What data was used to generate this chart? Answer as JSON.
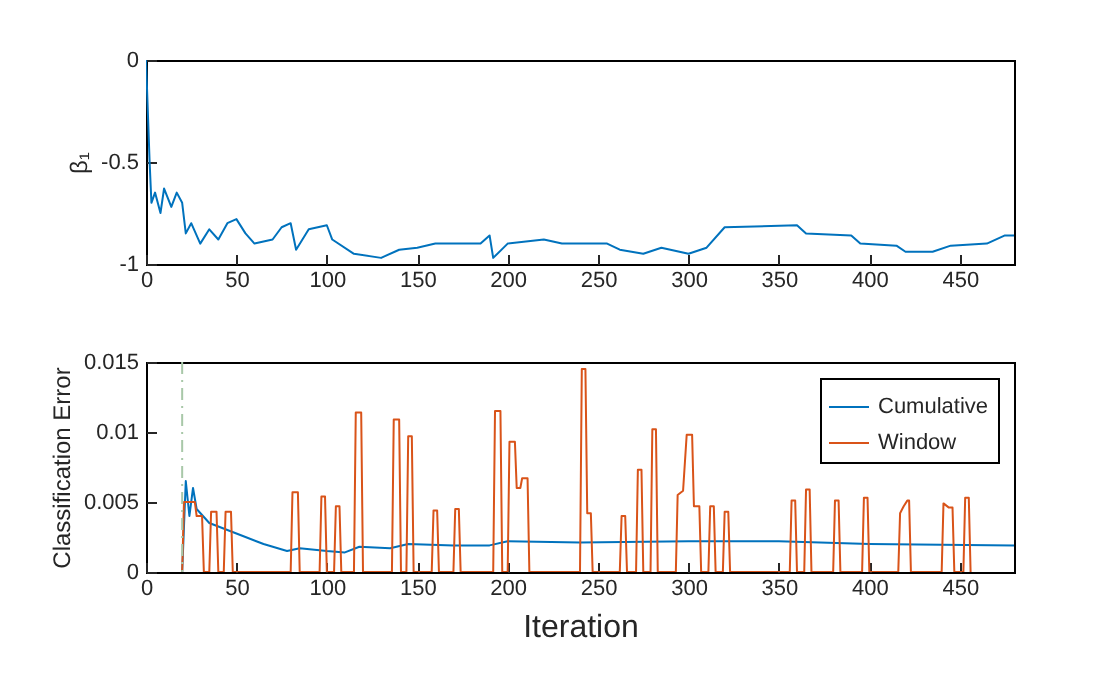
{
  "chart_data": [
    {
      "type": "line",
      "ylabel": "β₁",
      "xlim": [
        0,
        480
      ],
      "xticks": [
        0,
        50,
        100,
        150,
        200,
        250,
        300,
        350,
        400,
        450
      ],
      "ylim": [
        -1,
        0
      ],
      "yticks": [
        -1,
        -0.5,
        0
      ],
      "grid": false,
      "legend": false,
      "series": [
        {
          "color": "#0072bd",
          "x": [
            0,
            2,
            3,
            5,
            8,
            10,
            14,
            17,
            20,
            22,
            25,
            30,
            35,
            40,
            45,
            50,
            55,
            60,
            70,
            75,
            80,
            83,
            90,
            100,
            103,
            115,
            130,
            140,
            150,
            160,
            185,
            190,
            192,
            200,
            220,
            230,
            255,
            262,
            275,
            285,
            300,
            310,
            320,
            360,
            365,
            390,
            395,
            415,
            420,
            435,
            445,
            465,
            475,
            480
          ],
          "values": [
            0,
            -0.5,
            -0.7,
            -0.65,
            -0.75,
            -0.63,
            -0.72,
            -0.65,
            -0.7,
            -0.85,
            -0.8,
            -0.9,
            -0.83,
            -0.88,
            -0.8,
            -0.78,
            -0.85,
            -0.9,
            -0.88,
            -0.82,
            -0.8,
            -0.93,
            -0.83,
            -0.81,
            -0.88,
            -0.95,
            -0.97,
            -0.93,
            -0.92,
            -0.9,
            -0.9,
            -0.86,
            -0.97,
            -0.9,
            -0.88,
            -0.9,
            -0.9,
            -0.93,
            -0.95,
            -0.92,
            -0.95,
            -0.92,
            -0.82,
            -0.81,
            -0.85,
            -0.86,
            -0.9,
            -0.91,
            -0.94,
            -0.94,
            -0.91,
            -0.9,
            -0.86,
            -0.86
          ]
        }
      ]
    },
    {
      "type": "line",
      "xlabel": "Iteration",
      "ylabel": "Classification Error",
      "xlim": [
        0,
        480
      ],
      "xticks": [
        0,
        50,
        100,
        150,
        200,
        250,
        300,
        350,
        400,
        450
      ],
      "ylim": [
        0,
        0.015
      ],
      "yticks": [
        0,
        0.005,
        0.01,
        0.015
      ],
      "grid": false,
      "legend": "top right",
      "ref_lines": [
        {
          "axis": "x",
          "value": 20,
          "color": "#a8c8a8",
          "line_style": "dashdot"
        }
      ],
      "series": [
        {
          "name": "Cumulative",
          "color": "#0072bd",
          "x": [
            20,
            22,
            24,
            26,
            28,
            35,
            45,
            55,
            65,
            78,
            85,
            100,
            110,
            118,
            135,
            145,
            170,
            190,
            200,
            240,
            300,
            350,
            400,
            480
          ],
          "values": [
            0,
            0.0065,
            0.004,
            0.006,
            0.0045,
            0.0035,
            0.003,
            0.0025,
            0.002,
            0.0015,
            0.0017,
            0.0015,
            0.0014,
            0.0018,
            0.0017,
            0.002,
            0.0019,
            0.0019,
            0.0022,
            0.0021,
            0.0022,
            0.0022,
            0.002,
            0.0019
          ]
        },
        {
          "name": "Window",
          "color": "#d95319",
          "x": [
            20,
            21,
            27,
            28,
            31,
            32,
            35,
            36,
            39,
            40,
            43,
            44,
            47,
            48,
            80,
            81,
            84,
            85,
            96,
            97,
            99,
            100,
            104,
            105,
            107,
            108,
            115,
            116,
            119,
            120,
            136,
            137,
            140,
            141,
            144,
            145,
            147,
            148,
            158,
            159,
            161,
            162,
            170,
            171,
            173,
            174,
            192,
            193,
            196,
            197,
            200,
            201,
            204,
            205,
            207,
            208,
            211,
            212,
            240,
            241,
            243,
            244,
            246,
            247,
            262,
            263,
            265,
            266,
            271,
            272,
            274,
            275,
            279,
            280,
            282,
            283,
            293,
            294,
            297,
            299,
            302,
            303,
            306,
            307,
            311,
            312,
            314,
            315,
            319,
            320,
            322,
            323,
            356,
            357,
            359,
            360,
            364,
            365,
            367,
            368,
            380,
            381,
            383,
            384,
            396,
            397,
            399,
            400,
            416,
            417,
            419,
            421,
            422,
            423,
            440,
            441,
            444,
            446,
            447,
            452,
            453,
            455,
            456
          ],
          "values": [
            0,
            0.005,
            0.005,
            0.004,
            0.004,
            0,
            0,
            0.0043,
            0.0043,
            0,
            0,
            0.0043,
            0.0043,
            0,
            0,
            0.0057,
            0.0057,
            0,
            0,
            0.0054,
            0.0054,
            0,
            0,
            0.0047,
            0.0047,
            0,
            0,
            0.0114,
            0.0114,
            0,
            0,
            0.0109,
            0.0109,
            0,
            0,
            0.0097,
            0.0097,
            0,
            0,
            0.0044,
            0.0044,
            0,
            0,
            0.0045,
            0.0045,
            0,
            0,
            0.0115,
            0.0115,
            0,
            0,
            0.0093,
            0.0093,
            0.006,
            0.006,
            0.0067,
            0.0067,
            0,
            0,
            0.0145,
            0.0145,
            0.0042,
            0.0042,
            0,
            0,
            0.004,
            0.004,
            0,
            0,
            0.0073,
            0.0073,
            0,
            0,
            0.0102,
            0.0102,
            0,
            0,
            0.0055,
            0.0058,
            0.0098,
            0.0098,
            0.0047,
            0.0047,
            0,
            0,
            0.0047,
            0.0047,
            0,
            0,
            0.0043,
            0.0043,
            0,
            0,
            0.0051,
            0.0051,
            0,
            0,
            0.0059,
            0.0059,
            0,
            0,
            0.0051,
            0.0051,
            0,
            0,
            0.0053,
            0.0053,
            0,
            0,
            0.0042,
            0.0047,
            0.0051,
            0.0051,
            0,
            0,
            0.0049,
            0.0046,
            0.0046,
            0,
            0,
            0.0053,
            0.0053,
            0
          ]
        }
      ]
    }
  ]
}
